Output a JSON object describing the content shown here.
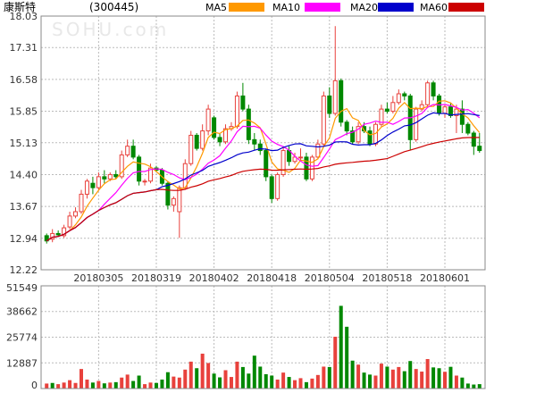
{
  "header": {
    "stock_name": "康斯特",
    "stock_code": "(300445)",
    "watermark": "SOHU.com"
  },
  "legend": [
    {
      "name": "MA5",
      "color": "#ff9900"
    },
    {
      "name": "MA10",
      "color": "#ff00ff"
    },
    {
      "name": "MA20",
      "color": "#0000cc"
    },
    {
      "name": "MA60",
      "color": "#cc0000"
    }
  ],
  "colors": {
    "up": "#e8413c",
    "down": "#008800",
    "grid": "#bbbbbb",
    "border": "#888888"
  },
  "chart_data": [
    {
      "type": "candlestick",
      "title": "康斯特 (300445)",
      "y_ticks": [
        "18.03",
        "17.31",
        "16.58",
        "15.85",
        "15.13",
        "14.40",
        "13.67",
        "12.94",
        "12.22"
      ],
      "ylim": [
        12.22,
        18.03
      ],
      "date_labels": [
        {
          "index": 9,
          "label": "20180305"
        },
        {
          "index": 19,
          "label": "20180319"
        },
        {
          "index": 29,
          "label": "20180402"
        },
        {
          "index": 39,
          "label": "20180418"
        },
        {
          "index": 49,
          "label": "20180504"
        },
        {
          "index": 59,
          "label": "20180518"
        },
        {
          "index": 69,
          "label": "20180601"
        }
      ],
      "candles": [
        [
          13.0,
          12.88,
          13.05,
          12.82
        ],
        [
          12.92,
          13.05,
          13.15,
          12.85
        ],
        [
          13.05,
          13.02,
          13.12,
          12.98
        ],
        [
          13.0,
          13.18,
          13.25,
          12.95
        ],
        [
          13.2,
          13.45,
          13.55,
          13.15
        ],
        [
          13.45,
          13.55,
          13.65,
          13.4
        ],
        [
          13.55,
          13.95,
          14.05,
          13.5
        ],
        [
          13.95,
          14.25,
          14.3,
          13.85
        ],
        [
          14.2,
          14.1,
          14.35,
          13.95
        ],
        [
          14.1,
          14.35,
          14.45,
          14.05
        ],
        [
          14.35,
          14.3,
          14.5,
          14.2
        ],
        [
          14.3,
          14.4,
          14.45,
          14.25
        ],
        [
          14.4,
          14.35,
          14.5,
          14.3
        ],
        [
          14.35,
          14.85,
          14.95,
          14.3
        ],
        [
          14.85,
          15.05,
          15.2,
          14.8
        ],
        [
          15.05,
          14.8,
          15.2,
          14.75
        ],
        [
          14.8,
          14.25,
          14.85,
          14.15
        ],
        [
          14.25,
          14.25,
          14.3,
          14.15
        ],
        [
          14.25,
          14.55,
          14.65,
          14.2
        ],
        [
          14.55,
          14.5,
          14.6,
          14.45
        ],
        [
          14.5,
          14.2,
          14.55,
          14.15
        ],
        [
          14.2,
          13.7,
          14.25,
          13.6
        ],
        [
          13.7,
          13.85,
          13.9,
          13.55
        ],
        [
          13.55,
          14.1,
          14.15,
          12.95
        ],
        [
          14.1,
          14.65,
          14.75,
          14.05
        ],
        [
          14.65,
          15.3,
          15.4,
          14.6
        ],
        [
          15.3,
          15.0,
          15.35,
          14.95
        ],
        [
          15.0,
          15.4,
          15.55,
          14.95
        ],
        [
          15.4,
          15.9,
          16.0,
          15.3
        ],
        [
          15.7,
          15.25,
          15.75,
          15.2
        ],
        [
          15.25,
          15.15,
          15.35,
          15.05
        ],
        [
          15.15,
          15.45,
          15.55,
          15.1
        ],
        [
          15.45,
          15.5,
          15.6,
          15.4
        ],
        [
          15.5,
          16.2,
          16.3,
          15.45
        ],
        [
          16.2,
          15.9,
          16.5,
          15.85
        ],
        [
          15.9,
          15.2,
          16.0,
          15.1
        ],
        [
          15.2,
          15.1,
          15.35,
          14.95
        ],
        [
          15.1,
          14.95,
          15.2,
          14.85
        ],
        [
          14.95,
          14.35,
          15.0,
          14.25
        ],
        [
          14.35,
          13.85,
          14.4,
          13.75
        ],
        [
          13.85,
          14.4,
          14.45,
          13.8
        ],
        [
          14.4,
          14.95,
          15.05,
          14.35
        ],
        [
          14.95,
          14.7,
          15.05,
          14.6
        ],
        [
          14.7,
          14.8,
          14.9,
          14.65
        ],
        [
          14.8,
          14.8,
          15.0,
          14.7
        ],
        [
          14.8,
          14.3,
          14.9,
          14.25
        ],
        [
          14.3,
          14.8,
          14.85,
          14.25
        ],
        [
          14.8,
          15.1,
          15.2,
          14.75
        ],
        [
          15.1,
          16.2,
          16.3,
          15.05
        ],
        [
          16.2,
          15.8,
          16.4,
          15.7
        ],
        [
          15.8,
          16.55,
          17.8,
          15.75
        ],
        [
          16.55,
          15.6,
          16.6,
          15.5
        ],
        [
          15.6,
          15.4,
          15.65,
          15.3
        ],
        [
          15.4,
          15.15,
          15.5,
          15.1
        ],
        [
          15.15,
          15.5,
          15.6,
          15.1
        ],
        [
          15.5,
          15.4,
          15.6,
          15.35
        ],
        [
          15.4,
          15.1,
          15.5,
          15.05
        ],
        [
          15.1,
          15.55,
          15.6,
          15.05
        ],
        [
          15.55,
          15.9,
          16.0,
          15.5
        ],
        [
          15.9,
          15.85,
          16.05,
          15.8
        ],
        [
          15.85,
          16.05,
          16.2,
          15.8
        ],
        [
          16.05,
          16.25,
          16.35,
          16.0
        ],
        [
          16.25,
          16.2,
          16.3,
          16.1
        ],
        [
          16.2,
          15.2,
          16.25,
          14.95
        ],
        [
          15.2,
          15.9,
          15.95,
          15.15
        ],
        [
          15.9,
          16.0,
          16.1,
          15.85
        ],
        [
          16.0,
          16.5,
          16.55,
          15.95
        ],
        [
          16.5,
          16.2,
          16.55,
          16.1
        ],
        [
          16.2,
          15.8,
          16.25,
          15.75
        ],
        [
          15.8,
          15.95,
          16.0,
          15.7
        ],
        [
          15.95,
          15.75,
          16.05,
          15.7
        ],
        [
          15.75,
          15.9,
          16.0,
          15.35
        ],
        [
          15.9,
          15.55,
          16.1,
          15.35
        ],
        [
          15.55,
          15.35,
          15.6,
          15.3
        ],
        [
          15.35,
          15.05,
          15.4,
          14.85
        ],
        [
          15.05,
          14.95,
          15.35,
          14.9
        ]
      ]
    },
    {
      "type": "bar",
      "title": "",
      "y_ticks": [
        "51549",
        "38662",
        "25774",
        "12887",
        "0"
      ],
      "ylim": [
        0,
        51549
      ],
      "values": [
        2500,
        2800,
        2200,
        3000,
        4200,
        2800,
        9800,
        4500,
        3000,
        3800,
        2600,
        3000,
        3200,
        5500,
        7000,
        3800,
        6500,
        2200,
        3000,
        2800,
        4500,
        8200,
        6000,
        5500,
        9500,
        13500,
        10200,
        17500,
        12800,
        7500,
        5600,
        9200,
        5800,
        13500,
        10800,
        7500,
        16500,
        11000,
        7200,
        6500,
        4500,
        8000,
        5800,
        4200,
        5200,
        3200,
        5000,
        6800,
        11000,
        10800,
        26000,
        41500,
        31000,
        14000,
        12000,
        8000,
        7000,
        6500,
        12500,
        11000,
        9500,
        10800,
        8700,
        13800,
        9800,
        8500,
        14800,
        10600,
        10200,
        8400,
        10900,
        6500,
        5500,
        2500,
        2000,
        2200
      ],
      "directions": [
        "up",
        "down",
        "up",
        "up",
        "up",
        "up",
        "up",
        "up",
        "down",
        "up",
        "down",
        "up",
        "down",
        "up",
        "up",
        "down",
        "down",
        "up",
        "up",
        "down",
        "down",
        "down",
        "up",
        "up",
        "up",
        "up",
        "down",
        "up",
        "up",
        "down",
        "down",
        "up",
        "up",
        "up",
        "down",
        "down",
        "down",
        "down",
        "down",
        "down",
        "up",
        "up",
        "down",
        "up",
        "up",
        "down",
        "up",
        "up",
        "up",
        "down",
        "up",
        "down",
        "down",
        "down",
        "up",
        "down",
        "down",
        "up",
        "up",
        "down",
        "up",
        "up",
        "down",
        "down",
        "up",
        "up",
        "up",
        "down",
        "down",
        "up",
        "down",
        "up",
        "down",
        "down",
        "down",
        "down"
      ]
    }
  ]
}
